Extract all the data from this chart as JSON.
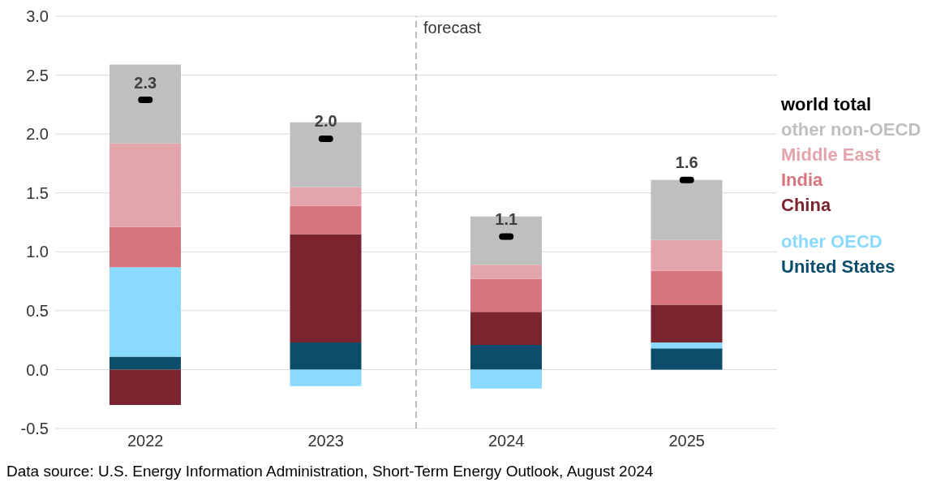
{
  "chart_data": {
    "type": "bar",
    "stacked": true,
    "x": [
      2022,
      2023,
      2024,
      2025
    ],
    "xlim": [
      2021.5,
      2025.5
    ],
    "xticks": [
      2022,
      2023,
      2024,
      2025
    ],
    "ylim": [
      -0.5,
      3.0
    ],
    "yticks": [
      {
        "value": -0.5,
        "label": "-0.5"
      },
      {
        "value": 0,
        "label": "0.0"
      },
      {
        "value": 0.5,
        "label": "0.5"
      },
      {
        "value": 1,
        "label": "1.0"
      },
      {
        "value": 1.5,
        "label": "1.5"
      },
      {
        "value": 2,
        "label": "2.0"
      },
      {
        "value": 2.5,
        "label": "2.5"
      },
      {
        "value": 3,
        "label": "3.0"
      }
    ],
    "grid": "y",
    "legend": "right",
    "series": [
      {
        "name": "United States",
        "color": "#0b4d6b",
        "values": [
          0.11,
          0.23,
          0.21,
          0.18
        ]
      },
      {
        "name": "other OECD",
        "color": "#8ad9ff",
        "values": [
          0.76,
          -0.14,
          -0.16,
          0.05
        ]
      },
      {
        "name": "China",
        "color": "#7a2430",
        "values": [
          -0.3,
          0.92,
          0.28,
          0.32
        ]
      },
      {
        "name": "India",
        "color": "#d6757e",
        "values": [
          0.34,
          0.24,
          0.28,
          0.29
        ]
      },
      {
        "name": "Middle East",
        "color": "#e3a5ab",
        "values": [
          0.71,
          0.16,
          0.12,
          0.26
        ]
      },
      {
        "name": "other non-OECD",
        "color": "#bfbfbf",
        "values": [
          0.67,
          0.55,
          0.41,
          0.51
        ]
      },
      {
        "name": "world total",
        "type": "scatter",
        "color": "#000000",
        "values": [
          2.29,
          1.96,
          1.13,
          1.61
        ],
        "value_labels": [
          "2.3",
          "2.0",
          "1.1",
          "1.6"
        ]
      }
    ],
    "ref_lines": [
      {
        "axis": "x",
        "value": 2023.5,
        "label": "forecast",
        "color": "#a6a6a6",
        "line_style": "dashed"
      }
    ],
    "annotations": [
      "Data source: U.S. Energy Information Administration, Short-Term Energy Outlook, August 2024"
    ]
  }
}
